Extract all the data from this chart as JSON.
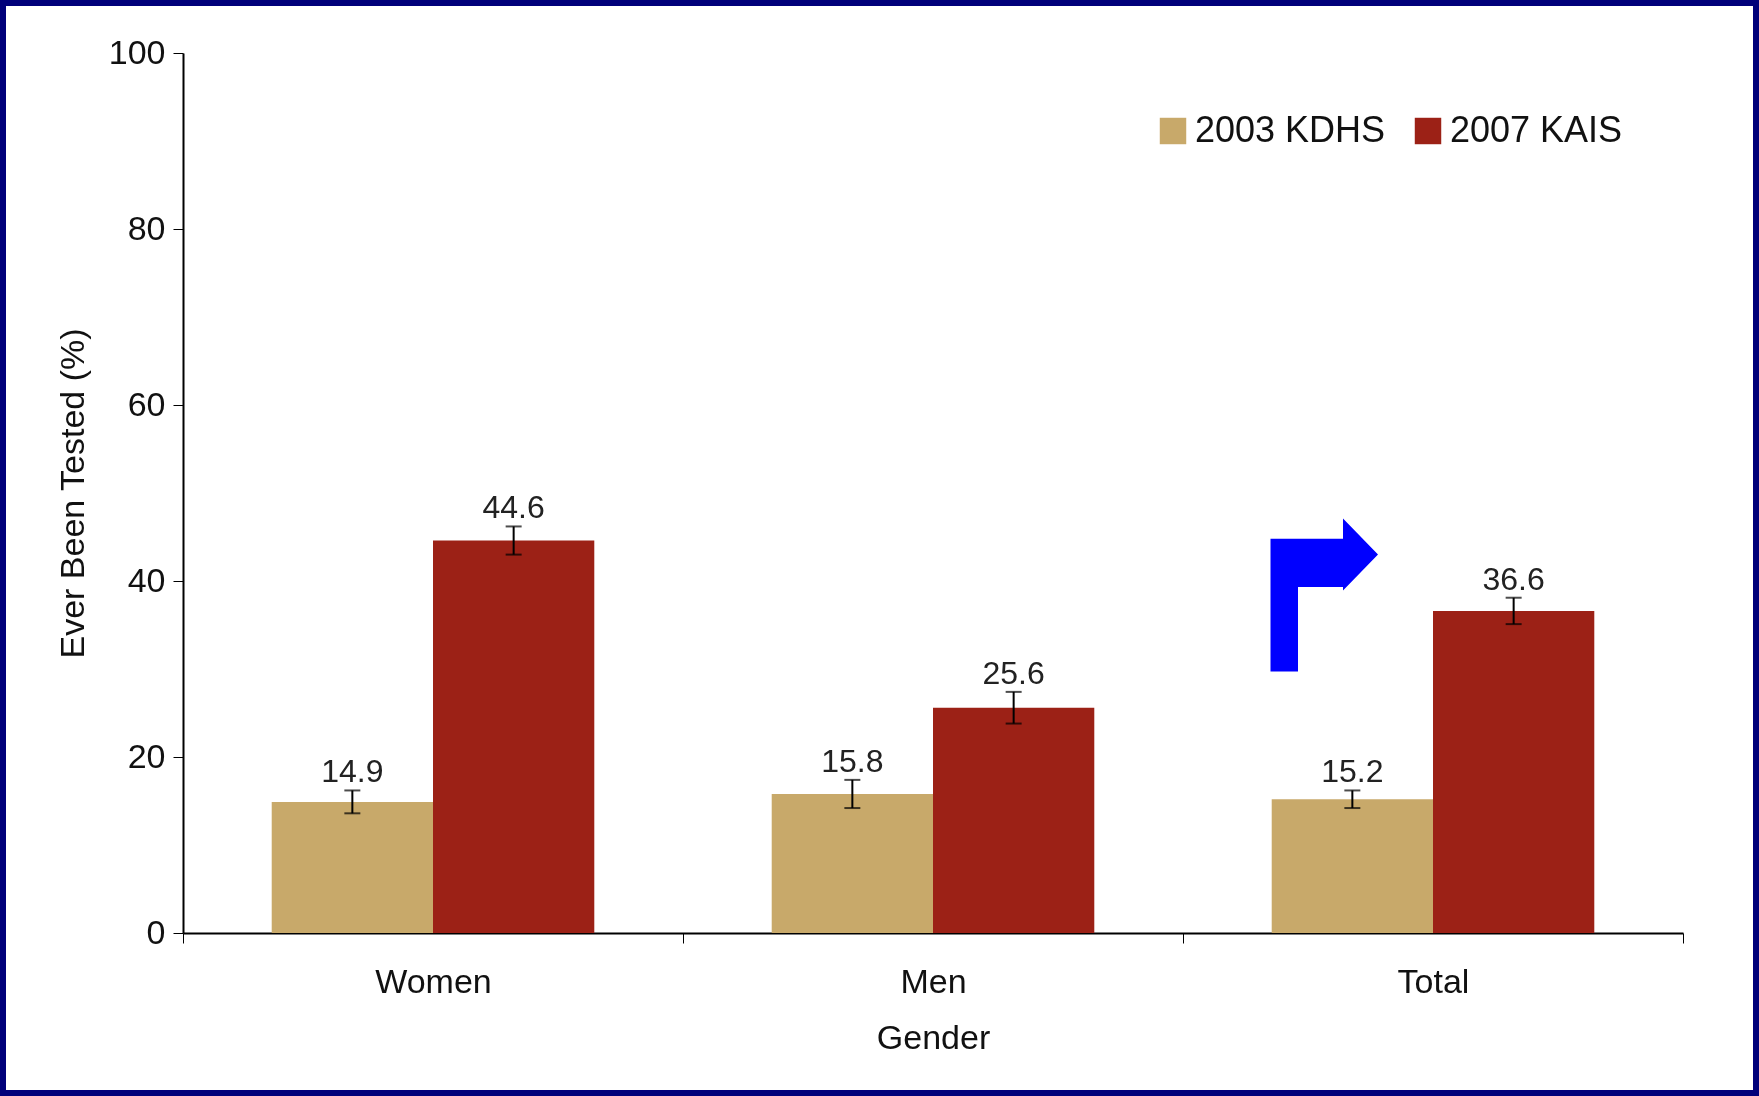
{
  "chart_data": {
    "type": "bar",
    "xlabel": "Gender",
    "ylabel": "Ever Been Tested (%)",
    "categories": [
      "Women",
      "Men",
      "Total"
    ],
    "series": [
      {
        "name": "2003 KDHS",
        "color": "#c8a96a",
        "values": [
          14.9,
          15.8,
          15.2
        ],
        "errors": [
          1.3,
          1.6,
          1.0
        ]
      },
      {
        "name": "2007 KAIS",
        "color": "#9c2116",
        "values": [
          44.6,
          25.6,
          36.6
        ],
        "errors": [
          1.6,
          1.8,
          1.5
        ]
      }
    ],
    "ylim": [
      0,
      100
    ],
    "yticks": [
      0,
      20,
      40,
      60,
      80,
      100
    ],
    "grid": false,
    "legend": "top right",
    "data_labels": true
  }
}
